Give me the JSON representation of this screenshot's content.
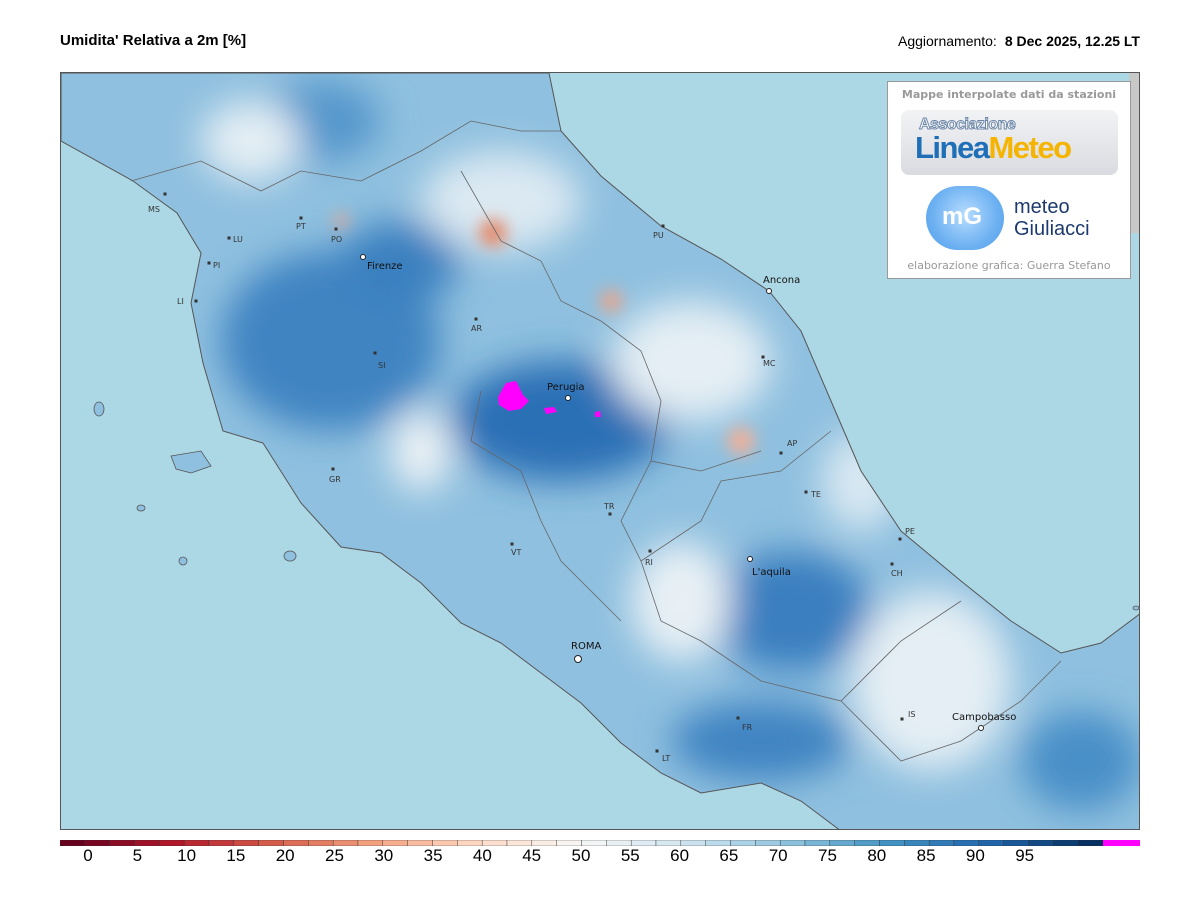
{
  "header": {
    "title": "Umidita' Relativa a 2m [%]",
    "update_label": "Aggiornamento:",
    "update_value": "8 Dec 2025, 12.25 LT"
  },
  "credits": {
    "heading": "Mappe interpolate dati da stazioni",
    "logo1_top": "Associazione",
    "logo1_main_a": "Linea",
    "logo1_main_b": "Meteo",
    "logo2_mark": "mG",
    "logo2_line1": "meteo",
    "logo2_line2": "Giuliacci",
    "footer": "elaborazione grafica: Guerra Stefano"
  },
  "map": {
    "colors": {
      "sea": "#acd8e5",
      "border": "#555555",
      "over_range": "#ff00ff"
    },
    "cities": [
      {
        "name": "Firenze",
        "kind": "city"
      },
      {
        "name": "Perugia",
        "kind": "city"
      },
      {
        "name": "Ancona",
        "kind": "city"
      },
      {
        "name": "L'aquila",
        "kind": "city"
      },
      {
        "name": "ROMA",
        "kind": "capital"
      },
      {
        "name": "Campobasso",
        "kind": "city"
      }
    ],
    "provinces": [
      "MS",
      "LU",
      "PI",
      "LI",
      "PT",
      "PO",
      "AR",
      "SI",
      "GR",
      "VT",
      "TR",
      "RI",
      "PU",
      "MC",
      "AP",
      "TE",
      "PE",
      "CH",
      "IS",
      "FR",
      "LT"
    ]
  },
  "colorbar": {
    "ticks": [
      "0",
      "5",
      "10",
      "15",
      "20",
      "25",
      "30",
      "35",
      "40",
      "45",
      "50",
      "55",
      "60",
      "65",
      "70",
      "75",
      "80",
      "85",
      "90",
      "95"
    ],
    "stops": [
      "#67001f",
      "#b2182b",
      "#d6604d",
      "#f4a582",
      "#fddbc7",
      "#f7f7f7",
      "#d1e5f0",
      "#92c5de",
      "#4393c3",
      "#2166ac",
      "#053061"
    ],
    "over_color": "#ff00ff"
  }
}
